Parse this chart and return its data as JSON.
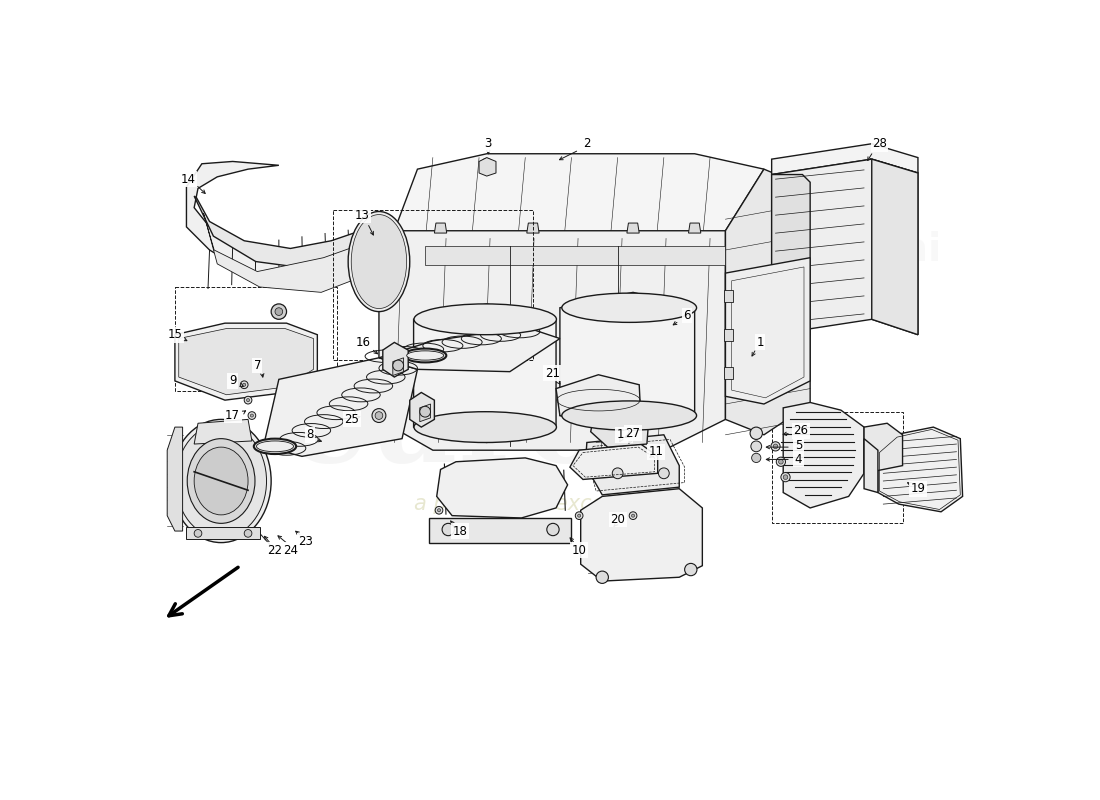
{
  "background_color": "#ffffff",
  "line_color": "#1a1a1a",
  "text_color": "#000000",
  "wm_color1": "#cccccc",
  "wm_color2": "#d4d4aa",
  "fig_w": 11.0,
  "fig_h": 8.0,
  "dpi": 100,
  "label_fs": 8.5
}
